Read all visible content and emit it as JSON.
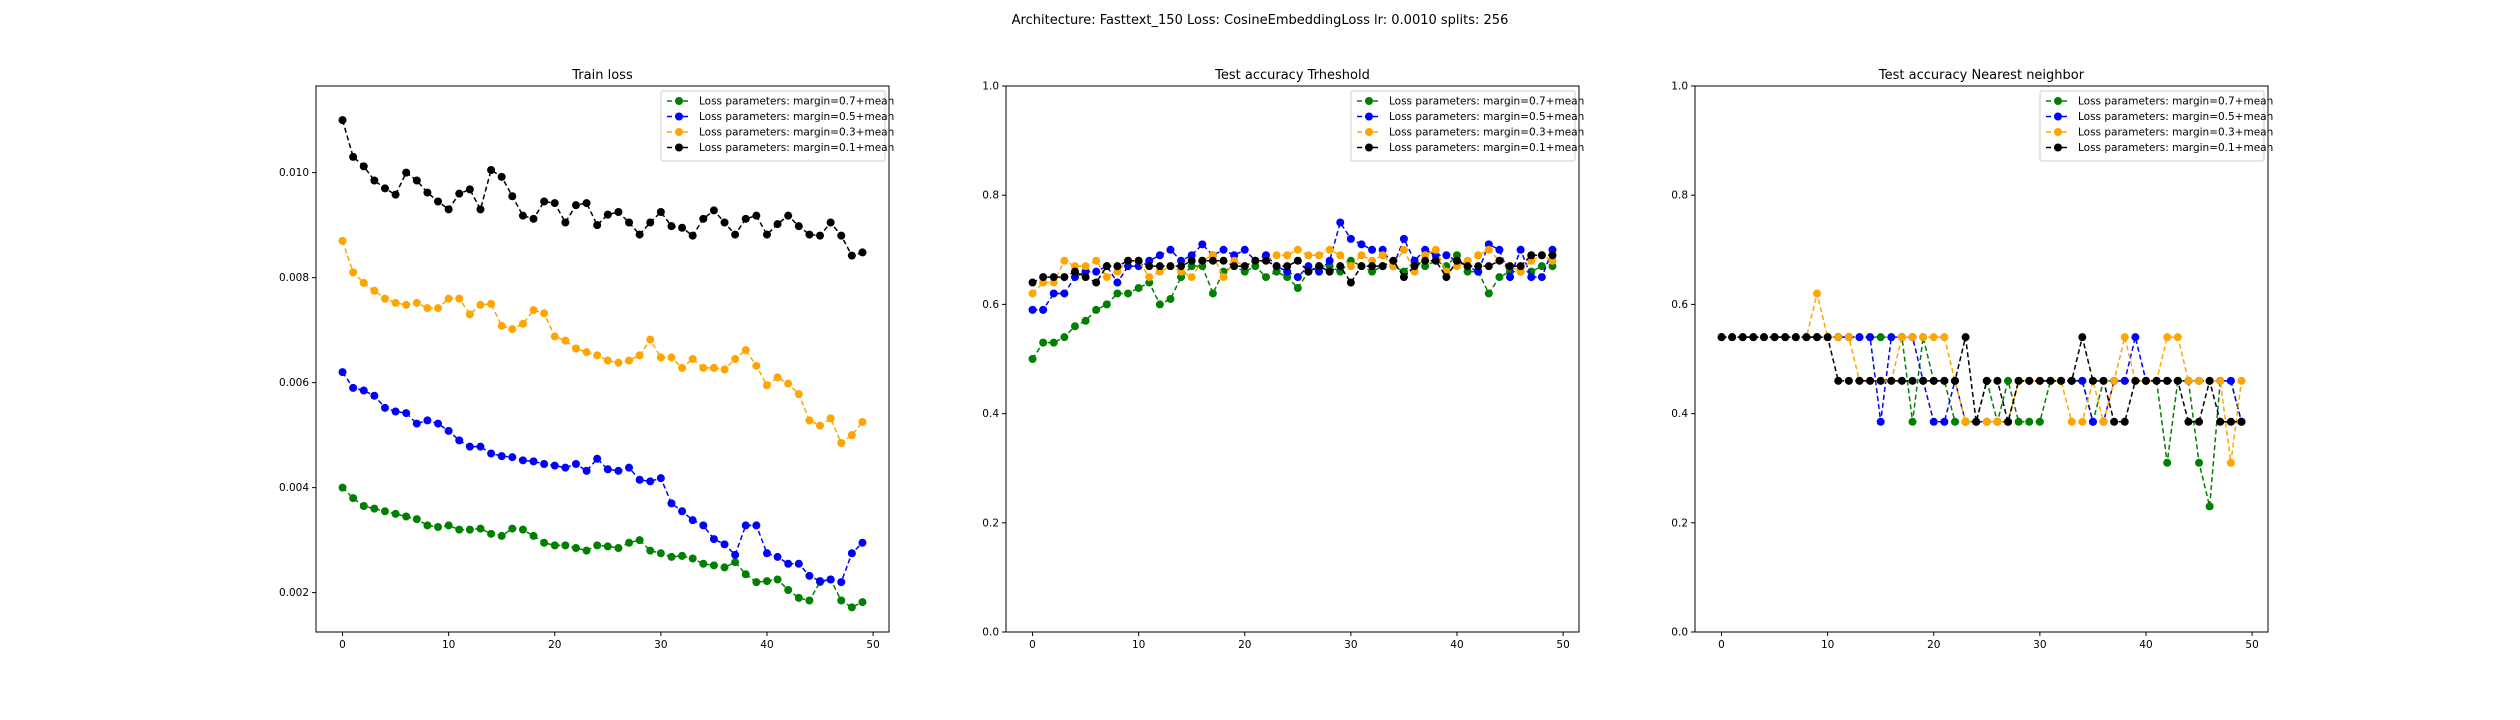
{
  "figure": {
    "suptitle": "Architecture: Fasttext_150 Loss: CosineEmbeddingLoss lr: 0.0010 splits: 256"
  },
  "chart_data": [
    {
      "type": "line",
      "title": "Train loss",
      "xlabel": "",
      "ylabel": "",
      "xlim": [
        -2.5,
        51.5
      ],
      "ylim": [
        0.00125,
        0.01165
      ],
      "xticks": [
        0,
        10,
        20,
        30,
        40,
        50
      ],
      "yticks": [
        0.002,
        0.004,
        0.006,
        0.008,
        0.01
      ],
      "ytick_labels": [
        "0.002",
        "0.004",
        "0.006",
        "0.008",
        "0.010"
      ],
      "legend_position": "top-right",
      "x": [
        0,
        1,
        2,
        3,
        4,
        5,
        6,
        7,
        8,
        9,
        10,
        11,
        12,
        13,
        14,
        15,
        16,
        17,
        18,
        19,
        20,
        21,
        22,
        23,
        24,
        25,
        26,
        27,
        28,
        29,
        30,
        31,
        32,
        33,
        34,
        35,
        36,
        37,
        38,
        39,
        40,
        41,
        42,
        43,
        44,
        45,
        46,
        47,
        48,
        49
      ],
      "series": [
        {
          "name": "Loss parameters: margin=0.7+mean",
          "color": "#008000",
          "values": [
            0.004,
            0.0038,
            0.00365,
            0.0036,
            0.00355,
            0.0035,
            0.00345,
            0.0034,
            0.00328,
            0.00325,
            0.00328,
            0.0032,
            0.0032,
            0.00322,
            0.00312,
            0.00308,
            0.00322,
            0.0032,
            0.00308,
            0.00295,
            0.0029,
            0.0029,
            0.00285,
            0.0028,
            0.0029,
            0.00288,
            0.00285,
            0.00295,
            0.003,
            0.0028,
            0.00275,
            0.00268,
            0.0027,
            0.00265,
            0.00255,
            0.00252,
            0.00248,
            0.00258,
            0.00235,
            0.0022,
            0.00222,
            0.00225,
            0.00205,
            0.0019,
            0.00185,
            0.0022,
            0.00225,
            0.00185,
            0.00172,
            0.00182
          ]
        },
        {
          "name": "Loss parameters: margin=0.5+mean",
          "color": "#0000ff",
          "values": [
            0.0062,
            0.0059,
            0.00585,
            0.00575,
            0.00552,
            0.00545,
            0.00542,
            0.00522,
            0.00528,
            0.00522,
            0.00508,
            0.0049,
            0.00478,
            0.00478,
            0.00465,
            0.0046,
            0.00458,
            0.00452,
            0.0045,
            0.00445,
            0.00442,
            0.00438,
            0.00445,
            0.00432,
            0.00455,
            0.00435,
            0.00432,
            0.00438,
            0.00415,
            0.00412,
            0.00418,
            0.0037,
            0.00355,
            0.00338,
            0.00328,
            0.00302,
            0.00292,
            0.00272,
            0.00328,
            0.00328,
            0.00275,
            0.00268,
            0.00255,
            0.00255,
            0.00232,
            0.00222,
            0.00225,
            0.0022,
            0.00275,
            0.00295
          ]
        },
        {
          "name": "Loss parameters: margin=0.3+mean",
          "color": "#ffa500",
          "values": [
            0.0087,
            0.0081,
            0.0079,
            0.00775,
            0.0076,
            0.00752,
            0.00748,
            0.00752,
            0.00742,
            0.00742,
            0.0076,
            0.0076,
            0.0073,
            0.00748,
            0.0075,
            0.00708,
            0.00702,
            0.00712,
            0.00738,
            0.00732,
            0.00688,
            0.0068,
            0.00665,
            0.00658,
            0.00652,
            0.00642,
            0.00638,
            0.00642,
            0.00652,
            0.00682,
            0.00648,
            0.00648,
            0.00628,
            0.00645,
            0.00628,
            0.00628,
            0.00625,
            0.00645,
            0.00662,
            0.00632,
            0.00595,
            0.0061,
            0.00598,
            0.00578,
            0.00528,
            0.00518,
            0.00532,
            0.00485,
            0.005,
            0.00525
          ]
        },
        {
          "name": "Loss parameters: margin=0.1+mean",
          "color": "#000000",
          "values": [
            0.011,
            0.0103,
            0.01012,
            0.00985,
            0.0097,
            0.00958,
            0.01,
            0.00985,
            0.00962,
            0.00945,
            0.0093,
            0.0096,
            0.00968,
            0.0093,
            0.01005,
            0.00992,
            0.00955,
            0.00918,
            0.00912,
            0.00945,
            0.00942,
            0.00905,
            0.00938,
            0.00942,
            0.009,
            0.0092,
            0.00925,
            0.00905,
            0.00882,
            0.00905,
            0.00925,
            0.00898,
            0.00895,
            0.0088,
            0.00912,
            0.00928,
            0.00905,
            0.00882,
            0.00912,
            0.00918,
            0.00882,
            0.00902,
            0.00918,
            0.00898,
            0.00882,
            0.0088,
            0.00905,
            0.0088,
            0.00842,
            0.00848
          ]
        }
      ]
    },
    {
      "type": "line",
      "title": "Test accuracy Trheshold",
      "xlabel": "",
      "ylabel": "",
      "xlim": [
        -2.5,
        51.5
      ],
      "ylim": [
        0.0,
        1.0
      ],
      "xticks": [
        0,
        10,
        20,
        30,
        40,
        50
      ],
      "yticks": [
        0.0,
        0.2,
        0.4,
        0.6,
        0.8,
        1.0
      ],
      "ytick_labels": [
        "0.0",
        "0.2",
        "0.4",
        "0.6",
        "0.8",
        "1.0"
      ],
      "legend_position": "top-right",
      "x": [
        0,
        1,
        2,
        3,
        4,
        5,
        6,
        7,
        8,
        9,
        10,
        11,
        12,
        13,
        14,
        15,
        16,
        17,
        18,
        19,
        20,
        21,
        22,
        23,
        24,
        25,
        26,
        27,
        28,
        29,
        30,
        31,
        32,
        33,
        34,
        35,
        36,
        37,
        38,
        39,
        40,
        41,
        42,
        43,
        44,
        45,
        46,
        47,
        48,
        49
      ],
      "series": [
        {
          "name": "Loss parameters: margin=0.7+mean",
          "color": "#008000",
          "values": [
            0.5,
            0.53,
            0.53,
            0.54,
            0.56,
            0.57,
            0.59,
            0.6,
            0.62,
            0.62,
            0.63,
            0.64,
            0.6,
            0.61,
            0.65,
            0.67,
            0.67,
            0.62,
            0.66,
            0.67,
            0.66,
            0.67,
            0.65,
            0.66,
            0.65,
            0.63,
            0.66,
            0.67,
            0.67,
            0.66,
            0.68,
            0.67,
            0.66,
            0.67,
            0.67,
            0.66,
            0.68,
            0.67,
            0.68,
            0.67,
            0.69,
            0.66,
            0.66,
            0.62,
            0.65,
            0.66,
            0.66,
            0.66,
            0.67,
            0.67
          ]
        },
        {
          "name": "Loss parameters: margin=0.5+mean",
          "color": "#0000ff",
          "values": [
            0.59,
            0.59,
            0.62,
            0.62,
            0.65,
            0.66,
            0.66,
            0.67,
            0.64,
            0.67,
            0.67,
            0.68,
            0.69,
            0.7,
            0.68,
            0.69,
            0.71,
            0.69,
            0.7,
            0.69,
            0.7,
            0.68,
            0.69,
            0.67,
            0.66,
            0.65,
            0.67,
            0.66,
            0.68,
            0.75,
            0.72,
            0.71,
            0.7,
            0.7,
            0.67,
            0.72,
            0.68,
            0.7,
            0.69,
            0.69,
            0.68,
            0.67,
            0.66,
            0.71,
            0.7,
            0.65,
            0.7,
            0.65,
            0.65,
            0.7
          ]
        },
        {
          "name": "Loss parameters: margin=0.3+mean",
          "color": "#ffa500",
          "values": [
            0.62,
            0.64,
            0.64,
            0.68,
            0.67,
            0.67,
            0.68,
            0.65,
            0.66,
            0.68,
            0.68,
            0.65,
            0.66,
            0.67,
            0.66,
            0.65,
            0.68,
            0.69,
            0.65,
            0.68,
            0.67,
            0.68,
            0.68,
            0.69,
            0.69,
            0.7,
            0.69,
            0.69,
            0.7,
            0.69,
            0.67,
            0.69,
            0.68,
            0.69,
            0.67,
            0.7,
            0.66,
            0.69,
            0.7,
            0.66,
            0.67,
            0.68,
            0.69,
            0.7,
            0.68,
            0.67,
            0.66,
            0.68,
            0.69,
            0.68
          ]
        },
        {
          "name": "Loss parameters: margin=0.1+mean",
          "color": "#000000",
          "values": [
            0.64,
            0.65,
            0.65,
            0.65,
            0.66,
            0.65,
            0.64,
            0.67,
            0.67,
            0.68,
            0.68,
            0.67,
            0.67,
            0.67,
            0.67,
            0.68,
            0.68,
            0.68,
            0.68,
            0.67,
            0.67,
            0.68,
            0.68,
            0.67,
            0.67,
            0.68,
            0.66,
            0.67,
            0.66,
            0.67,
            0.64,
            0.67,
            0.67,
            0.67,
            0.68,
            0.65,
            0.67,
            0.68,
            0.68,
            0.65,
            0.68,
            0.67,
            0.67,
            0.67,
            0.68,
            0.67,
            0.67,
            0.69,
            0.69,
            0.69
          ]
        }
      ]
    },
    {
      "type": "line",
      "title": "Test accuracy Nearest neighbor",
      "xlabel": "",
      "ylabel": "",
      "xlim": [
        -2.5,
        51.5
      ],
      "ylim": [
        0.0,
        1.0
      ],
      "xticks": [
        0,
        10,
        20,
        30,
        40,
        50
      ],
      "yticks": [
        0.0,
        0.2,
        0.4,
        0.6,
        0.8,
        1.0
      ],
      "ytick_labels": [
        "0.0",
        "0.2",
        "0.4",
        "0.6",
        "0.8",
        "1.0"
      ],
      "legend_position": "top-right",
      "x": [
        0,
        1,
        2,
        3,
        4,
        5,
        6,
        7,
        8,
        9,
        10,
        11,
        12,
        13,
        14,
        15,
        16,
        17,
        18,
        19,
        20,
        21,
        22,
        23,
        24,
        25,
        26,
        27,
        28,
        29,
        30,
        31,
        32,
        33,
        34,
        35,
        36,
        37,
        38,
        39,
        40,
        41,
        42,
        43,
        44,
        45,
        46,
        47,
        48,
        49
      ],
      "series": [
        {
          "name": "Loss parameters: margin=0.7+mean",
          "color": "#008000",
          "values": [
            0.54,
            0.54,
            0.54,
            0.54,
            0.54,
            0.54,
            0.54,
            0.54,
            0.54,
            0.54,
            0.54,
            0.54,
            0.54,
            0.54,
            0.54,
            0.54,
            0.54,
            0.54,
            0.385,
            0.54,
            0.46,
            0.46,
            0.385,
            0.385,
            0.385,
            0.46,
            0.385,
            0.46,
            0.385,
            0.385,
            0.385,
            0.46,
            0.46,
            0.46,
            0.46,
            0.385,
            0.46,
            0.46,
            0.46,
            0.46,
            0.46,
            0.46,
            0.31,
            0.46,
            0.46,
            0.31,
            0.23,
            0.46,
            0.46,
            0.385
          ]
        },
        {
          "name": "Loss parameters: margin=0.5+mean",
          "color": "#0000ff",
          "values": [
            0.54,
            0.54,
            0.54,
            0.54,
            0.54,
            0.54,
            0.54,
            0.54,
            0.54,
            0.54,
            0.54,
            0.54,
            0.54,
            0.54,
            0.54,
            0.385,
            0.54,
            0.54,
            0.54,
            0.46,
            0.385,
            0.385,
            0.46,
            0.385,
            0.385,
            0.385,
            0.385,
            0.385,
            0.46,
            0.46,
            0.46,
            0.46,
            0.46,
            0.46,
            0.46,
            0.385,
            0.385,
            0.46,
            0.46,
            0.54,
            0.46,
            0.46,
            0.46,
            0.46,
            0.46,
            0.46,
            0.46,
            0.46,
            0.46,
            0.385
          ]
        },
        {
          "name": "Loss parameters: margin=0.3+mean",
          "color": "#ffa500",
          "values": [
            0.54,
            0.54,
            0.54,
            0.54,
            0.54,
            0.54,
            0.54,
            0.54,
            0.54,
            0.62,
            0.54,
            0.54,
            0.54,
            0.46,
            0.46,
            0.46,
            0.46,
            0.54,
            0.54,
            0.54,
            0.54,
            0.54,
            0.46,
            0.385,
            0.385,
            0.385,
            0.385,
            0.385,
            0.46,
            0.46,
            0.46,
            0.46,
            0.46,
            0.385,
            0.385,
            0.46,
            0.385,
            0.46,
            0.54,
            0.46,
            0.46,
            0.46,
            0.54,
            0.54,
            0.46,
            0.46,
            0.46,
            0.46,
            0.31,
            0.46
          ]
        },
        {
          "name": "Loss parameters: margin=0.1+mean",
          "color": "#000000",
          "values": [
            0.54,
            0.54,
            0.54,
            0.54,
            0.54,
            0.54,
            0.54,
            0.54,
            0.54,
            0.54,
            0.54,
            0.46,
            0.46,
            0.46,
            0.46,
            0.46,
            0.46,
            0.46,
            0.46,
            0.46,
            0.46,
            0.46,
            0.46,
            0.54,
            0.385,
            0.46,
            0.46,
            0.385,
            0.46,
            0.46,
            0.46,
            0.46,
            0.46,
            0.46,
            0.54,
            0.46,
            0.46,
            0.385,
            0.385,
            0.46,
            0.46,
            0.46,
            0.46,
            0.46,
            0.385,
            0.385,
            0.46,
            0.385,
            0.385,
            0.385
          ]
        }
      ]
    }
  ]
}
